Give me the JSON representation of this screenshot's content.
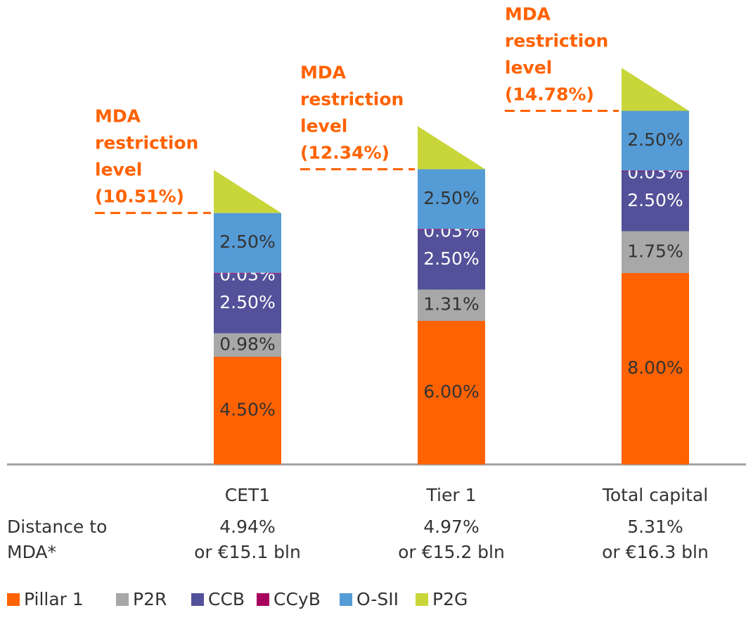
{
  "chart_data": {
    "type": "stacked_bar",
    "categories": [
      "CET1",
      "Tier 1",
      "Total capital"
    ],
    "ylim": [
      0,
      19
    ],
    "series": [
      {
        "name": "Pillar 1",
        "color": "#ff6200",
        "label_color": "#333333",
        "values": [
          4.5,
          6,
          8
        ],
        "value_labels": [
          "4.50%",
          "6.00%",
          "8.00%"
        ]
      },
      {
        "name": "P2R",
        "color": "#a8a8a8",
        "label_color": "#333333",
        "values": [
          0.98,
          1.31,
          1.75
        ],
        "value_labels": [
          "0.98%",
          "1.31%",
          "1.75%"
        ]
      },
      {
        "name": "CCB",
        "color": "#525199",
        "label_color": "#ffffff",
        "values": [
          2.5,
          2.5,
          2.5
        ],
        "value_labels": [
          "2.50%",
          "2.50%",
          "2.50%"
        ]
      },
      {
        "name": "CCyB",
        "color": "#a8005e",
        "label_color": "#ffffff",
        "values": [
          0.03,
          0.03,
          0.03
        ],
        "value_labels": [
          "0.03%",
          "0.03%",
          "0.03%"
        ]
      },
      {
        "name": "O-SII",
        "color": "#559bd5",
        "label_color": "#333333",
        "values": [
          2.5,
          2.5,
          2.5
        ],
        "value_labels": [
          "2.50%",
          "2.50%",
          "2.50%"
        ]
      },
      {
        "name": "P2G",
        "color": "#c9d639",
        "shape": "triangle",
        "values": [
          1.8,
          1.8,
          1.8
        ]
      }
    ],
    "mda": [
      {
        "value": 10.51,
        "label": [
          "MDA",
          "restriction",
          "level",
          "(10.51%)"
        ]
      },
      {
        "value": 12.34,
        "label": [
          "MDA",
          "restriction",
          "level",
          "(12.34%)"
        ]
      },
      {
        "value": 14.78,
        "label": [
          "MDA",
          "restriction",
          "level",
          "(14.78%)"
        ]
      }
    ],
    "distance_label": [
      "Distance to",
      "MDA*"
    ],
    "distance": [
      [
        "4.94%",
        "or €15.1 bln"
      ],
      [
        "4.97%",
        "or €15.2 bln"
      ],
      [
        "5.31%",
        "or €16.3 bln"
      ]
    ]
  }
}
